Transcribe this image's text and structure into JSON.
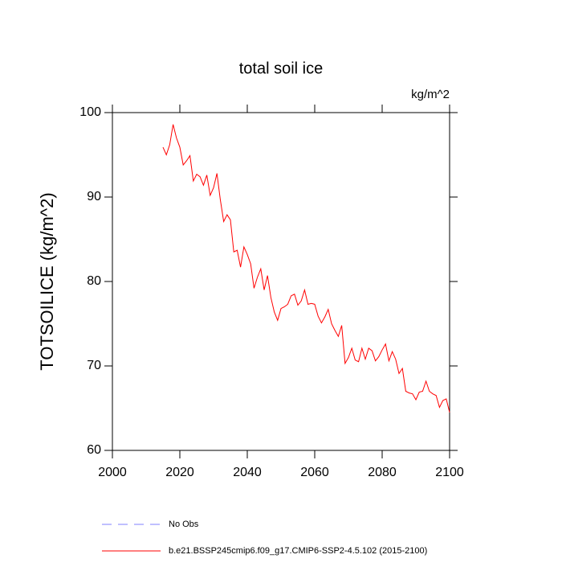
{
  "chart_data": {
    "type": "line",
    "title": "total soil ice",
    "units": "kg/m^2",
    "y_label": "TOTSOILICE  (kg/m^2)",
    "x": [
      2015,
      2016,
      2017,
      2018,
      2019,
      2020,
      2021,
      2022,
      2023,
      2024,
      2025,
      2026,
      2027,
      2028,
      2029,
      2030,
      2031,
      2032,
      2033,
      2034,
      2035,
      2036,
      2037,
      2038,
      2039,
      2040,
      2041,
      2042,
      2043,
      2044,
      2045,
      2046,
      2047,
      2048,
      2049,
      2050,
      2051,
      2052,
      2053,
      2054,
      2055,
      2056,
      2057,
      2058,
      2059,
      2060,
      2061,
      2062,
      2063,
      2064,
      2065,
      2066,
      2067,
      2068,
      2069,
      2070,
      2071,
      2072,
      2073,
      2074,
      2075,
      2076,
      2077,
      2078,
      2079,
      2080,
      2081,
      2082,
      2083,
      2084,
      2085,
      2086,
      2087,
      2088,
      2089,
      2090,
      2091,
      2092,
      2093,
      2094,
      2095,
      2096,
      2097,
      2098,
      2099,
      2100
    ],
    "series": [
      {
        "name": "No Obs",
        "color": "#8080ff",
        "dashed": true,
        "values": [
          null,
          null,
          null,
          null,
          null,
          null,
          null,
          null,
          null,
          null,
          null,
          null,
          null,
          null,
          null,
          null,
          null,
          null,
          null,
          null,
          null,
          null,
          null,
          null,
          null,
          null,
          null,
          null,
          null,
          null,
          null,
          null,
          null,
          null,
          null,
          null,
          null,
          null,
          null,
          null,
          null,
          null,
          null,
          null,
          null,
          null,
          null,
          null,
          null,
          null,
          null,
          null,
          null,
          null,
          null,
          null,
          null,
          null,
          null,
          null,
          null,
          null,
          null,
          null,
          null,
          null,
          null,
          null,
          null,
          null,
          null,
          null,
          null,
          null,
          null,
          null,
          null,
          null,
          null,
          null,
          null,
          null,
          null,
          null,
          null,
          null
        ]
      },
      {
        "name": "b.e21.BSSP245cmip6.f09_g17.CMIP6-SSP2-4.5.102 (2015-2100)",
        "color": "#ff0000",
        "dashed": false,
        "values": [
          95.9,
          95.0,
          96.2,
          98.6,
          97.0,
          95.9,
          93.8,
          94.3,
          94.9,
          91.9,
          92.7,
          92.4,
          91.4,
          92.6,
          90.2,
          91.1,
          92.8,
          89.7,
          87.1,
          87.9,
          87.3,
          83.5,
          83.7,
          81.7,
          84.1,
          83.2,
          82.1,
          79.2,
          80.5,
          81.5,
          79.0,
          80.7,
          78.1,
          76.4,
          75.4,
          76.8,
          77.0,
          77.3,
          78.3,
          78.5,
          77.2,
          77.7,
          79.0,
          77.3,
          77.4,
          77.3,
          75.9,
          75.1,
          75.8,
          76.7,
          75.0,
          74.2,
          73.5,
          74.8,
          70.3,
          71.0,
          72.1,
          70.7,
          70.5,
          72.1,
          70.8,
          72.1,
          71.8,
          70.6,
          71.1,
          71.9,
          72.6,
          70.6,
          71.7,
          70.8,
          69.1,
          69.7,
          67.0,
          66.8,
          66.7,
          66.0,
          66.9,
          67.0,
          68.2,
          67.0,
          66.7,
          66.5,
          65.1,
          65.9,
          66.1,
          64.5
        ]
      }
    ],
    "xlim": [
      2000,
      2100
    ],
    "xticks": [
      2000,
      2020,
      2040,
      2060,
      2080,
      2100
    ],
    "ylim": [
      60,
      100
    ],
    "yticks": [
      60,
      70,
      80,
      90,
      100
    ]
  }
}
